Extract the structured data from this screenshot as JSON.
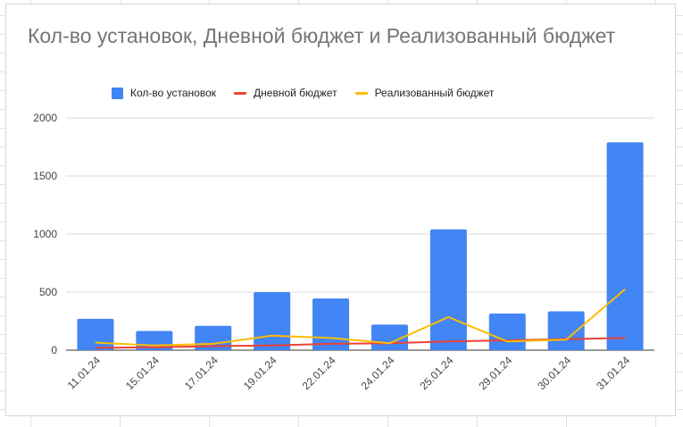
{
  "chart_data": {
    "type": "bar",
    "title": "Кол-во установок, Дневной бюджет и Реализованный бюджет",
    "categories": [
      "11.01.24",
      "15.01.24",
      "17.01.24",
      "19.01.24",
      "22.01.24",
      "24.01.24",
      "25.01.24",
      "29.01.24",
      "30.01.24",
      "31.01.24"
    ],
    "series": [
      {
        "name": "Кол-во установок",
        "kind": "bar",
        "color": "#4285f4",
        "values": [
          270,
          165,
          210,
          500,
          445,
          220,
          1040,
          315,
          335,
          1790
        ]
      },
      {
        "name": "Дневной бюджет",
        "kind": "line",
        "color": "#ea4335",
        "values": [
          20,
          25,
          35,
          40,
          55,
          60,
          75,
          85,
          95,
          105
        ]
      },
      {
        "name": "Реализованный бюджет",
        "kind": "line",
        "color": "#fbbc04",
        "values": [
          65,
          40,
          55,
          125,
          105,
          60,
          285,
          75,
          90,
          525
        ]
      }
    ],
    "y_ticks": [
      "0",
      "500",
      "1000",
      "1500",
      "2000"
    ],
    "ylim": [
      0,
      2000
    ],
    "grid": true,
    "legend_position": "top",
    "xlabel": "",
    "ylabel": ""
  }
}
